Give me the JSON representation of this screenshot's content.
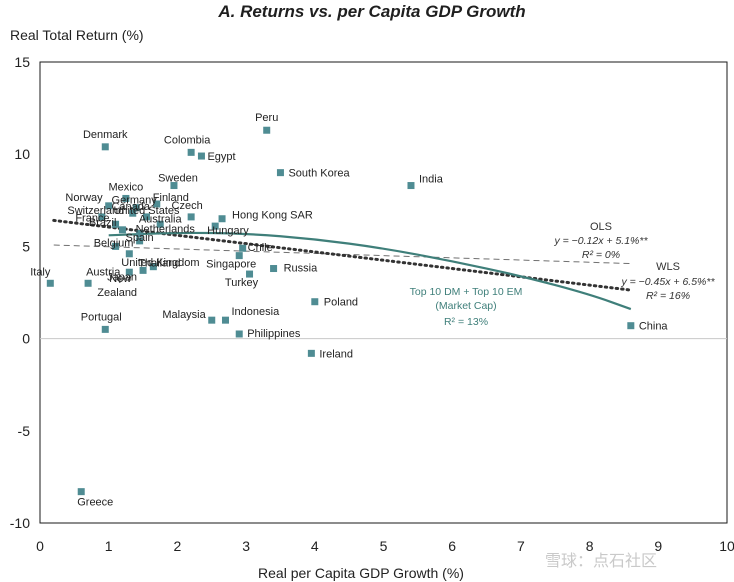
{
  "chart_data": {
    "type": "scatter",
    "title": "A. Returns vs. per Capita GDP Growth",
    "xlabel": "Real per Capita GDP Growth (%)",
    "ylabel": "Real Total Return (%)",
    "xlim": [
      0,
      10
    ],
    "ylim": [
      -10,
      15
    ],
    "xticks": [
      0,
      1,
      2,
      3,
      4,
      5,
      6,
      7,
      8,
      9,
      10
    ],
    "yticks": [
      -10,
      -5,
      0,
      5,
      10,
      15
    ],
    "grid": false,
    "marker_color": "#4f8c93",
    "points": [
      {
        "label": "Peru",
        "x": 3.3,
        "y": 11.3
      },
      {
        "label": "Denmark",
        "x": 0.95,
        "y": 10.4
      },
      {
        "label": "Colombia",
        "x": 2.2,
        "y": 10.1
      },
      {
        "label": "Egypt",
        "x": 2.35,
        "y": 9.9
      },
      {
        "label": "South Korea",
        "x": 3.5,
        "y": 9.0
      },
      {
        "label": "India",
        "x": 5.4,
        "y": 8.3
      },
      {
        "label": "Sweden",
        "x": 1.95,
        "y": 8.3
      },
      {
        "label": "Mexico",
        "x": 1.25,
        "y": 7.6
      },
      {
        "label": "Norway",
        "x": 1.0,
        "y": 7.2
      },
      {
        "label": "Germany",
        "x": 1.4,
        "y": 7.1
      },
      {
        "label": "Finland",
        "x": 1.7,
        "y": 7.3
      },
      {
        "label": "Switzerland",
        "x": 0.9,
        "y": 6.6
      },
      {
        "label": "Canada",
        "x": 1.35,
        "y": 6.8
      },
      {
        "label": "United States",
        "x": 1.55,
        "y": 6.6
      },
      {
        "label": "Czech",
        "x": 2.2,
        "y": 6.6
      },
      {
        "label": "France",
        "x": 1.1,
        "y": 6.2
      },
      {
        "label": "Hong Kong SAR",
        "x": 2.65,
        "y": 6.5
      },
      {
        "label": "Brazil",
        "x": 1.2,
        "y": 5.9
      },
      {
        "label": "Netherlands",
        "x": 1.45,
        "y": 5.7
      },
      {
        "label": "Australia",
        "x": 1.75,
        "y": 6.2
      },
      {
        "label": "Hungary",
        "x": 2.55,
        "y": 6.1
      },
      {
        "label": "Belgium",
        "x": 1.1,
        "y": 5.0
      },
      {
        "label": "Spain",
        "x": 1.45,
        "y": 5.3
      },
      {
        "label": "Chile",
        "x": 2.95,
        "y": 4.9
      },
      {
        "label": "United Kingdom",
        "x": 1.3,
        "y": 4.6
      },
      {
        "label": "Singapore",
        "x": 2.9,
        "y": 4.5
      },
      {
        "label": "Italy",
        "x": 0.15,
        "y": 3.0
      },
      {
        "label": "Austria",
        "x": 0.7,
        "y": 3.0
      },
      {
        "label": "New Zealand",
        "x": 1.3,
        "y": 3.6
      },
      {
        "label": "Thailand",
        "x": 1.65,
        "y": 3.9
      },
      {
        "label": "Japan",
        "x": 1.5,
        "y": 3.7
      },
      {
        "label": "Russia",
        "x": 3.4,
        "y": 3.8
      },
      {
        "label": "Turkey",
        "x": 3.05,
        "y": 3.5
      },
      {
        "label": "Poland",
        "x": 4.0,
        "y": 2.0
      },
      {
        "label": "Malaysia",
        "x": 2.5,
        "y": 1.0
      },
      {
        "label": "Indonesia",
        "x": 2.7,
        "y": 1.0
      },
      {
        "label": "Portugal",
        "x": 0.95,
        "y": 0.5
      },
      {
        "label": "Philippines",
        "x": 2.9,
        "y": 0.25
      },
      {
        "label": "China",
        "x": 8.6,
        "y": 0.7
      },
      {
        "label": "Ireland",
        "x": 3.95,
        "y": -0.8
      },
      {
        "label": "Greece",
        "x": 0.6,
        "y": -8.3
      }
    ],
    "series": [
      {
        "name": "OLS",
        "style": "dashed",
        "color": "#707070",
        "slope": -0.12,
        "intercept": 5.1
      },
      {
        "name": "WLS",
        "style": "dotted",
        "color": "#333333",
        "slope": -0.45,
        "intercept": 6.5
      },
      {
        "name": "Top 10 DM + Top 10 EM (Market Cap)",
        "style": "solid",
        "color": "#3f7f7a",
        "x": [
          1.0,
          2.0,
          3.0,
          4.0,
          5.0,
          6.0,
          7.0,
          8.0,
          8.6
        ],
        "y": [
          5.6,
          5.75,
          5.7,
          5.4,
          4.9,
          4.2,
          3.4,
          2.4,
          1.6
        ]
      }
    ],
    "annotations": {
      "ols_name": "OLS",
      "ols_eq": "y = −0.12x + 5.1%**",
      "ols_r2": "R² = 0%",
      "wls_name": "WLS",
      "wls_eq": "y = −0.45x + 6.5%**",
      "wls_r2": "R² = 16%",
      "curve_line1": "Top 10 DM + Top 10 EM",
      "curve_line2": "(Market Cap)",
      "curve_r2": "R² = 13%"
    },
    "watermark": "雪球：点石社区"
  }
}
